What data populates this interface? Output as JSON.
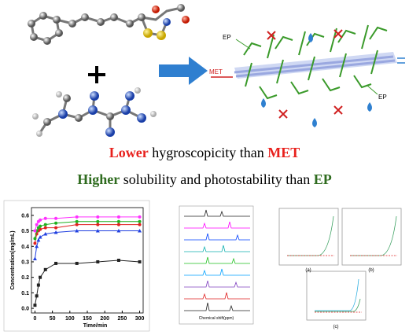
{
  "diagram": {
    "ep_label_top": "EP",
    "met_label": "MET",
    "ep_label_bottom": "EP"
  },
  "headlines": [
    {
      "highlight": "Lower",
      "text": "hygroscopicity than",
      "subject": "MET"
    },
    {
      "highlight": "Higher",
      "text": "solubility and photostability than",
      "subject": "EP"
    }
  ],
  "nmr_panel": {
    "x_title": "Chemical shift(ppm)"
  },
  "stability_panels": [
    "(a)",
    "(b)",
    "(c)"
  ],
  "chart_data": {
    "type": "line",
    "x_title": "Time/min",
    "y_title": "Concentration(mg/mL)",
    "x": [
      0,
      5,
      10,
      15,
      30,
      60,
      120,
      180,
      240,
      300
    ],
    "series": [
      {
        "color": "#222222",
        "marker": "square",
        "values": [
          0.02,
          0.08,
          0.15,
          0.2,
          0.25,
          0.29,
          0.29,
          0.3,
          0.31,
          0.3
        ]
      },
      {
        "color": "#1f3fe0",
        "marker": "triangle",
        "values": [
          0.32,
          0.4,
          0.44,
          0.46,
          0.48,
          0.49,
          0.5,
          0.5,
          0.5,
          0.5
        ]
      },
      {
        "color": "#e02020",
        "marker": "circle",
        "values": [
          0.42,
          0.48,
          0.5,
          0.51,
          0.52,
          0.52,
          0.54,
          0.54,
          0.54,
          0.54
        ]
      },
      {
        "color": "#20b020",
        "marker": "circle",
        "values": [
          0.45,
          0.5,
          0.52,
          0.53,
          0.54,
          0.55,
          0.56,
          0.56,
          0.56,
          0.56
        ]
      },
      {
        "color": "#ff30ff",
        "marker": "circle",
        "values": [
          0.5,
          0.54,
          0.56,
          0.57,
          0.58,
          0.58,
          0.59,
          0.59,
          0.59,
          0.59
        ]
      }
    ],
    "xlim": [
      -10,
      310
    ],
    "ylim": [
      -0.03,
      0.65
    ],
    "xticks": [
      0,
      50,
      100,
      150,
      200,
      250,
      300
    ],
    "yticks": [
      {
        "value": 0,
        "label": "0.0"
      },
      0.1,
      0.2,
      0.3,
      0.4,
      0.5,
      0.6
    ]
  }
}
